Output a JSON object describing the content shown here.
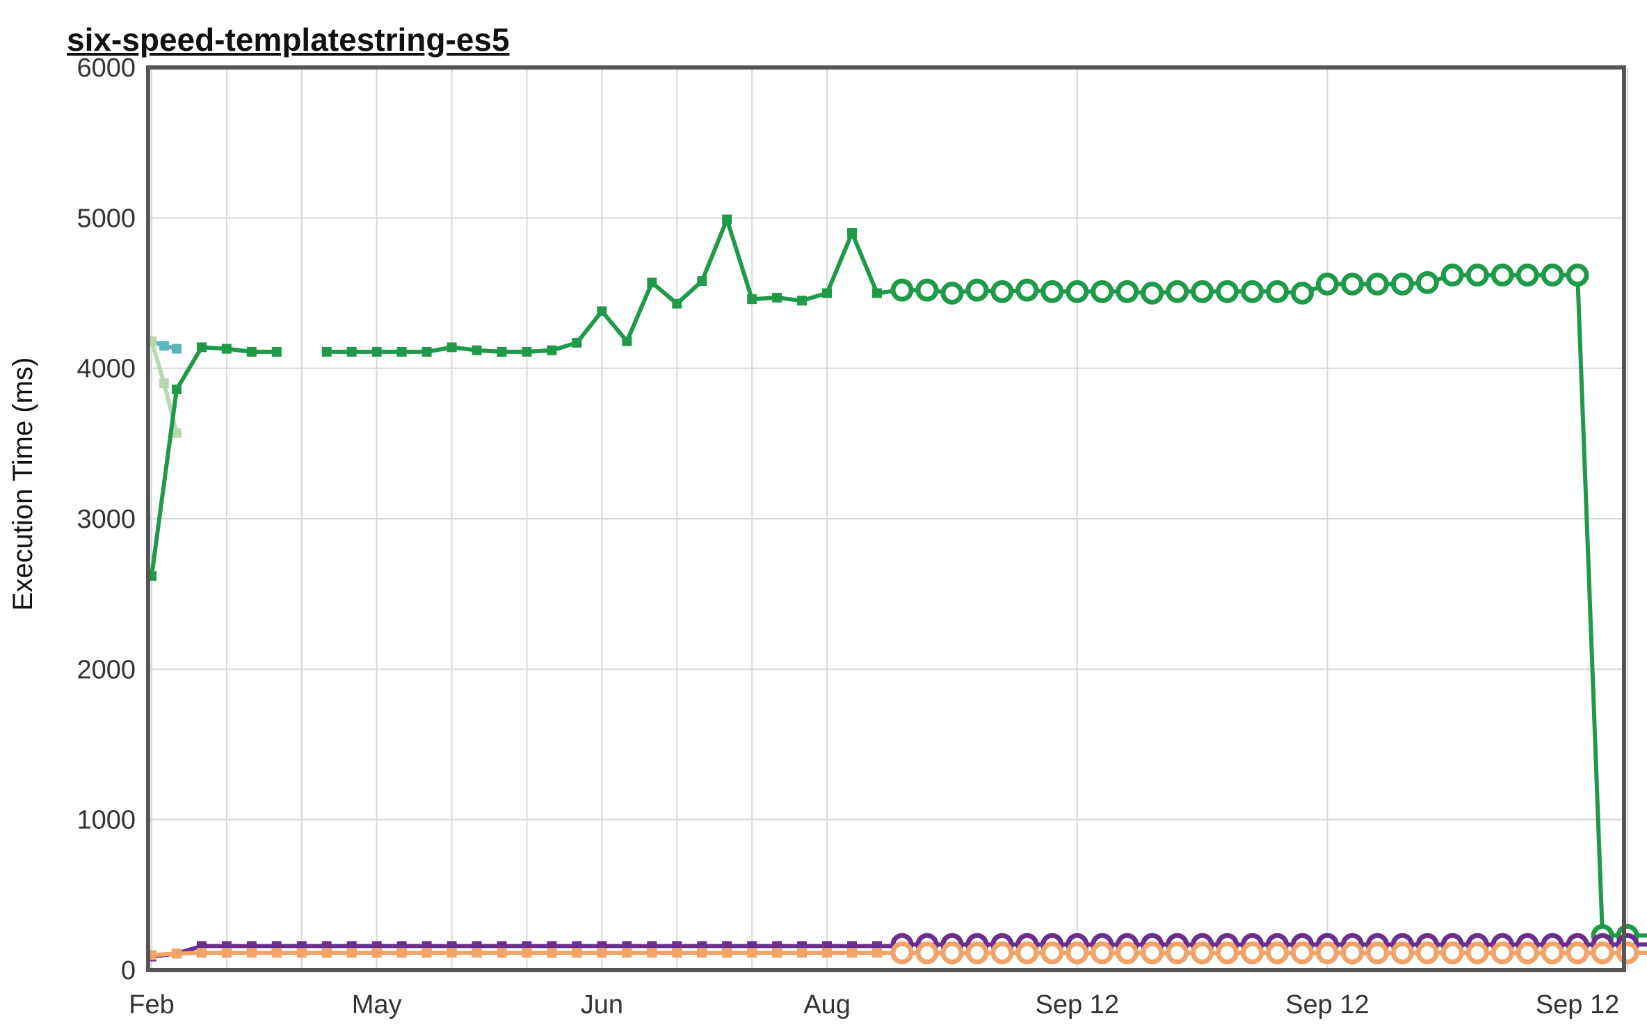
{
  "chart_data": {
    "type": "line",
    "title": "six-speed-templatestring-es5",
    "ylabel": "Execution Time (ms)",
    "xlabel": "",
    "ylim": [
      0,
      6000
    ],
    "yticks": [
      0,
      1000,
      2000,
      3000,
      4000,
      5000,
      6000
    ],
    "xticks": [
      {
        "i": 0,
        "label": "Feb"
      },
      {
        "i": 9,
        "label": "May"
      },
      {
        "i": 18,
        "label": "Jun"
      },
      {
        "i": 27,
        "label": "Aug"
      },
      {
        "i": 37,
        "label": "Sep 12"
      },
      {
        "i": 47,
        "label": "Sep 12"
      },
      {
        "i": 57,
        "label": "Sep 12"
      }
    ],
    "xgrid": [
      0,
      3,
      6,
      9,
      12,
      15,
      18,
      21,
      24,
      27,
      37,
      47,
      59
    ],
    "x_count": 60,
    "grid": true,
    "series": [
      {
        "color": "#5bb5bd",
        "marker": "square",
        "points": [
          [
            0,
            4180
          ],
          [
            0.5,
            4150
          ],
          [
            1,
            4130
          ]
        ]
      },
      {
        "color": "#b8d9b0",
        "marker": "square",
        "points": [
          [
            0,
            4180
          ],
          [
            0.5,
            3900
          ],
          [
            1,
            3570
          ]
        ]
      },
      {
        "color": "#1f9a48",
        "marker": "square",
        "points": [
          [
            0,
            2620
          ],
          [
            1,
            3860
          ],
          [
            2,
            4140
          ],
          [
            3,
            4130
          ],
          [
            4,
            4110
          ],
          [
            5,
            4110
          ],
          null,
          [
            7,
            4110
          ],
          [
            8,
            4110
          ],
          [
            9,
            4110
          ],
          [
            10,
            4110
          ],
          [
            11,
            4110
          ],
          [
            12,
            4140
          ],
          [
            13,
            4120
          ],
          [
            14,
            4110
          ],
          [
            15,
            4110
          ],
          [
            16,
            4120
          ],
          [
            17,
            4170
          ],
          [
            18,
            4380
          ],
          [
            19,
            4180
          ],
          [
            20,
            4570
          ],
          [
            21,
            4430
          ],
          [
            22,
            4580
          ],
          [
            23,
            4990
          ],
          [
            24,
            4460
          ],
          [
            25,
            4470
          ],
          [
            26,
            4450
          ],
          [
            27,
            4500
          ],
          [
            28,
            4900
          ],
          [
            29,
            4500
          ],
          [
            30,
            4520
          ]
        ]
      },
      {
        "color": "#1f9a48",
        "marker": "circle",
        "points": [
          [
            30,
            4520
          ],
          [
            31,
            4520
          ],
          [
            32,
            4500
          ],
          [
            33,
            4520
          ],
          [
            34,
            4510
          ],
          [
            35,
            4520
          ],
          [
            36,
            4510
          ],
          [
            37,
            4510
          ],
          [
            38,
            4510
          ],
          [
            39,
            4510
          ],
          [
            40,
            4500
          ],
          [
            41,
            4510
          ],
          [
            42,
            4510
          ],
          [
            43,
            4510
          ],
          [
            44,
            4510
          ],
          [
            45,
            4510
          ],
          [
            46,
            4500
          ],
          [
            47,
            4560
          ],
          [
            48,
            4560
          ],
          [
            49,
            4560
          ],
          [
            50,
            4560
          ],
          [
            51,
            4570
          ],
          [
            52,
            4620
          ],
          [
            53,
            4620
          ],
          [
            54,
            4620
          ],
          [
            55,
            4620
          ],
          [
            56,
            4620
          ],
          [
            57,
            4620
          ],
          [
            58,
            230
          ],
          [
            59,
            230
          ],
          [
            60,
            230
          ],
          [
            61,
            230
          ]
        ]
      },
      {
        "color": "#6a2e8e",
        "marker": "square",
        "points": [
          [
            0,
            90
          ],
          [
            1,
            110
          ],
          [
            2,
            160
          ],
          [
            3,
            160
          ],
          [
            4,
            160
          ],
          [
            5,
            160
          ],
          [
            6,
            160
          ],
          [
            7,
            160
          ],
          [
            8,
            160
          ],
          [
            9,
            160
          ],
          [
            10,
            160
          ],
          [
            11,
            160
          ],
          [
            12,
            160
          ],
          [
            13,
            160
          ],
          [
            14,
            160
          ],
          [
            15,
            160
          ],
          [
            16,
            160
          ],
          [
            17,
            160
          ],
          [
            18,
            160
          ],
          [
            19,
            160
          ],
          [
            20,
            160
          ],
          [
            21,
            160
          ],
          [
            22,
            160
          ],
          [
            23,
            160
          ],
          [
            24,
            160
          ],
          [
            25,
            160
          ],
          [
            26,
            160
          ],
          [
            27,
            160
          ],
          [
            28,
            160
          ],
          [
            29,
            160
          ],
          [
            30,
            160
          ]
        ]
      },
      {
        "color": "#6a2e8e",
        "marker": "circle",
        "points": [
          [
            30,
            170
          ],
          [
            31,
            170
          ],
          [
            32,
            170
          ],
          [
            33,
            170
          ],
          [
            34,
            170
          ],
          [
            35,
            170
          ],
          [
            36,
            170
          ],
          [
            37,
            170
          ],
          [
            38,
            170
          ],
          [
            39,
            170
          ],
          [
            40,
            170
          ],
          [
            41,
            170
          ],
          [
            42,
            170
          ],
          [
            43,
            170
          ],
          [
            44,
            170
          ],
          [
            45,
            170
          ],
          [
            46,
            170
          ],
          [
            47,
            170
          ],
          [
            48,
            170
          ],
          [
            49,
            170
          ],
          [
            50,
            170
          ],
          [
            51,
            170
          ],
          [
            52,
            170
          ],
          [
            53,
            170
          ],
          [
            54,
            170
          ],
          [
            55,
            170
          ],
          [
            56,
            170
          ],
          [
            57,
            170
          ],
          [
            58,
            170
          ],
          [
            59,
            170
          ],
          [
            60,
            170
          ],
          [
            61,
            170
          ]
        ]
      },
      {
        "color": "#f0a46a",
        "marker": "square",
        "points": [
          [
            0,
            100
          ],
          [
            1,
            110
          ],
          [
            2,
            115
          ],
          [
            3,
            115
          ],
          [
            4,
            115
          ],
          [
            5,
            115
          ],
          [
            6,
            115
          ],
          [
            7,
            115
          ],
          [
            8,
            115
          ],
          [
            9,
            115
          ],
          [
            10,
            115
          ],
          [
            11,
            115
          ],
          [
            12,
            115
          ],
          [
            13,
            115
          ],
          [
            14,
            115
          ],
          [
            15,
            115
          ],
          [
            16,
            115
          ],
          [
            17,
            115
          ],
          [
            18,
            115
          ],
          [
            19,
            115
          ],
          [
            20,
            115
          ],
          [
            21,
            115
          ],
          [
            22,
            115
          ],
          [
            23,
            115
          ],
          [
            24,
            115
          ],
          [
            25,
            115
          ],
          [
            26,
            115
          ],
          [
            27,
            115
          ],
          [
            28,
            115
          ],
          [
            29,
            115
          ],
          [
            30,
            115
          ]
        ]
      },
      {
        "color": "#f0a46a",
        "marker": "circle",
        "points": [
          [
            30,
            115
          ],
          [
            31,
            115
          ],
          [
            32,
            115
          ],
          [
            33,
            115
          ],
          [
            34,
            115
          ],
          [
            35,
            115
          ],
          [
            36,
            115
          ],
          [
            37,
            115
          ],
          [
            38,
            115
          ],
          [
            39,
            115
          ],
          [
            40,
            115
          ],
          [
            41,
            115
          ],
          [
            42,
            115
          ],
          [
            43,
            115
          ],
          [
            44,
            115
          ],
          [
            45,
            115
          ],
          [
            46,
            115
          ],
          [
            47,
            115
          ],
          [
            48,
            115
          ],
          [
            49,
            115
          ],
          [
            50,
            115
          ],
          [
            51,
            115
          ],
          [
            52,
            115
          ],
          [
            53,
            115
          ],
          [
            54,
            115
          ],
          [
            55,
            115
          ],
          [
            56,
            115
          ],
          [
            57,
            115
          ],
          [
            58,
            115
          ],
          [
            59,
            115
          ],
          [
            60,
            115
          ],
          [
            61,
            115
          ]
        ]
      }
    ]
  }
}
